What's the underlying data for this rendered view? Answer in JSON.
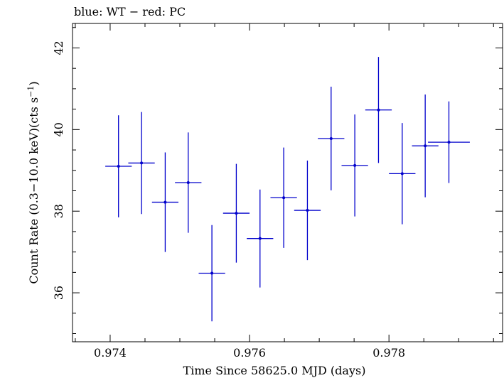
{
  "chart_data": {
    "type": "scatter",
    "title": "blue: WT − red: PC",
    "xlabel": "Time Since 58625.0 MJD (days)",
    "ylabel_main": "Count Rate (0.3−10.0 keV)(cts s",
    "ylabel_sup": "−1",
    "ylabel_end": ")",
    "xlim": [
      0.97346,
      0.97963
    ],
    "ylim": [
      34.8,
      42.6
    ],
    "x_ticks": [
      0.974,
      0.976,
      0.978
    ],
    "x_tick_labels": [
      "0.974",
      "0.976",
      "0.978"
    ],
    "y_ticks": [
      36,
      38,
      40,
      42
    ],
    "y_tick_labels": [
      "36",
      "38",
      "40",
      "42"
    ],
    "grid": false,
    "series": [
      {
        "color": "#0000cc",
        "points": [
          {
            "x": 0.97412,
            "xerr": 0.00019,
            "y": 39.1,
            "yerr": 1.25
          },
          {
            "x": 0.97445,
            "xerr": 0.00019,
            "y": 39.18,
            "yerr": 1.25
          },
          {
            "x": 0.97479,
            "xerr": 0.00019,
            "y": 38.22,
            "yerr": 1.22
          },
          {
            "x": 0.97512,
            "xerr": 0.00019,
            "y": 38.7,
            "yerr": 1.23
          },
          {
            "x": 0.97546,
            "xerr": 0.00019,
            "y": 36.48,
            "yerr": 1.18
          },
          {
            "x": 0.97581,
            "xerr": 0.00019,
            "y": 37.95,
            "yerr": 1.21
          },
          {
            "x": 0.97615,
            "xerr": 0.00019,
            "y": 37.33,
            "yerr": 1.2
          },
          {
            "x": 0.97649,
            "xerr": 0.00019,
            "y": 38.33,
            "yerr": 1.23
          },
          {
            "x": 0.97683,
            "xerr": 0.00019,
            "y": 38.02,
            "yerr": 1.22
          },
          {
            "x": 0.97717,
            "xerr": 0.00019,
            "y": 39.78,
            "yerr": 1.27
          },
          {
            "x": 0.97751,
            "xerr": 0.00019,
            "y": 39.12,
            "yerr": 1.25
          },
          {
            "x": 0.97785,
            "xerr": 0.00019,
            "y": 40.48,
            "yerr": 1.3
          },
          {
            "x": 0.97819,
            "xerr": 0.00019,
            "y": 38.92,
            "yerr": 1.24
          },
          {
            "x": 0.97852,
            "xerr": 0.00019,
            "y": 39.6,
            "yerr": 1.26
          },
          {
            "x": 0.97886,
            "xerr": 0.0003,
            "y": 39.69,
            "yerr": 1.0
          }
        ]
      }
    ]
  }
}
